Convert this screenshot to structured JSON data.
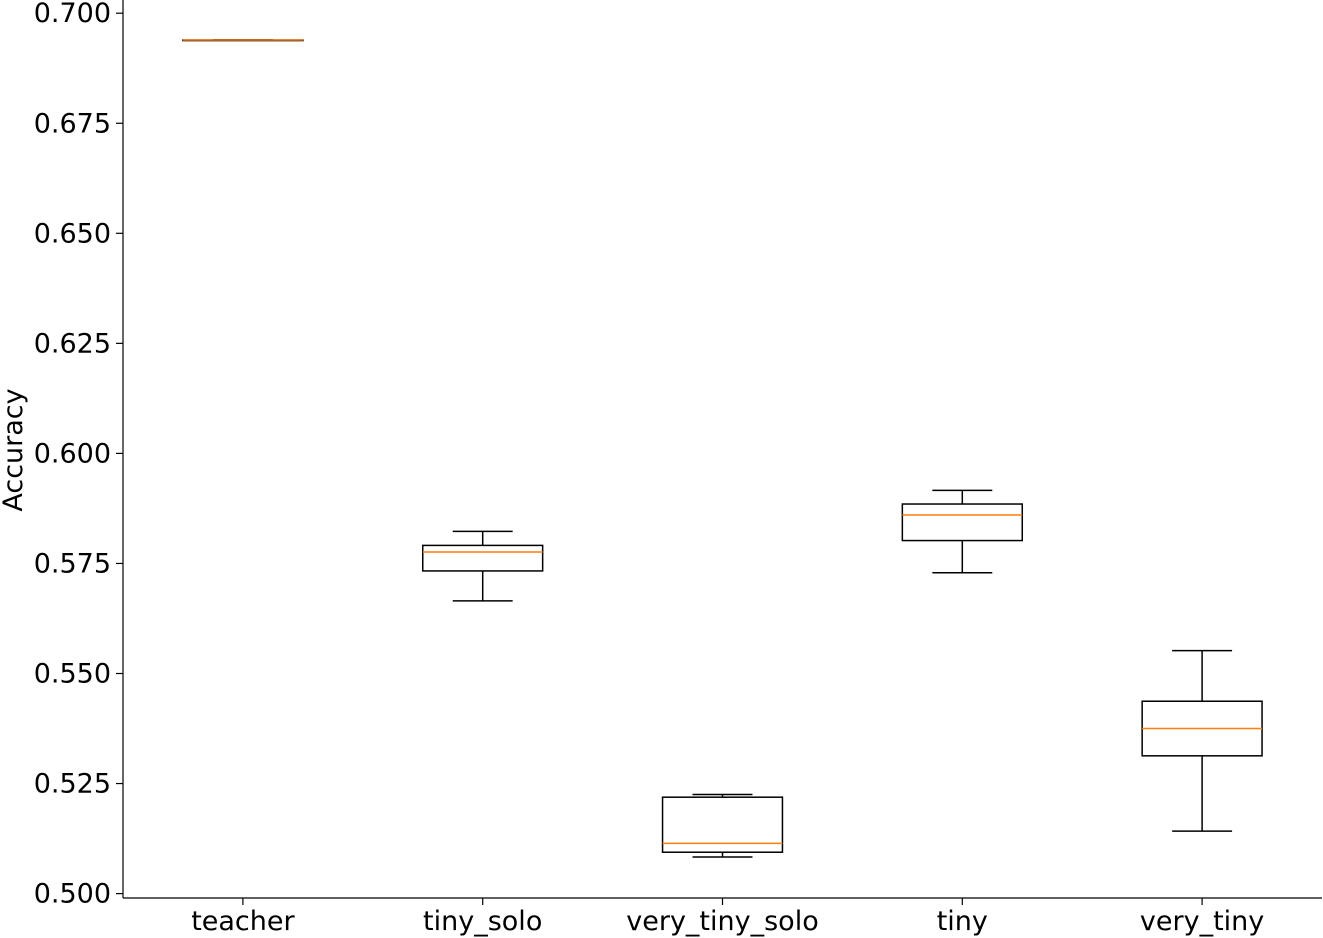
{
  "chart_data": {
    "type": "boxplot",
    "title": "",
    "xlabel": "",
    "ylabel": "Accuracy",
    "ylim": [
      0.499,
      0.703
    ],
    "yticks": [
      "0.500",
      "0.525",
      "0.550",
      "0.575",
      "0.600",
      "0.625",
      "0.650",
      "0.675",
      "0.700"
    ],
    "grid": false,
    "categories": [
      "teacher",
      "tiny_solo",
      "very_tiny_solo",
      "tiny",
      "very_tiny"
    ],
    "series": [
      {
        "category": "teacher",
        "whisker_low": 0.6939,
        "q1": 0.6939,
        "median": 0.6939,
        "q3": 0.6939,
        "whisker_high": 0.6939
      },
      {
        "category": "tiny_solo",
        "whisker_low": 0.5665,
        "q1": 0.5733,
        "median": 0.5776,
        "q3": 0.5791,
        "whisker_high": 0.5823
      },
      {
        "category": "very_tiny_solo",
        "whisker_low": 0.5083,
        "q1": 0.5094,
        "median": 0.5114,
        "q3": 0.5219,
        "whisker_high": 0.5225
      },
      {
        "category": "tiny",
        "whisker_low": 0.5729,
        "q1": 0.5802,
        "median": 0.586,
        "q3": 0.5885,
        "whisker_high": 0.5916
      },
      {
        "category": "very_tiny",
        "whisker_low": 0.5142,
        "q1": 0.5313,
        "median": 0.5375,
        "q3": 0.5437,
        "whisker_high": 0.5552
      }
    ],
    "colors": {
      "box": "#000000",
      "median": "#ff7f0e",
      "axis": "#000000"
    }
  }
}
